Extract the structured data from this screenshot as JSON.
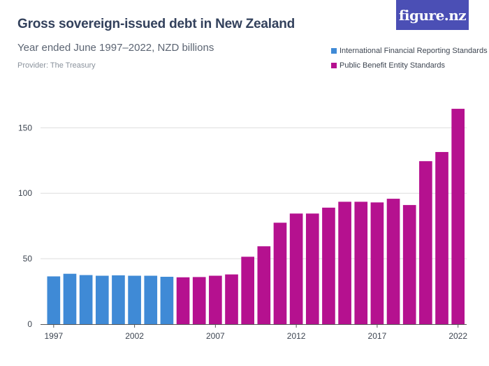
{
  "header": {
    "title": "Gross sovereign-issued debt in New Zealand",
    "subtitle": "Year ended June 1997–2022, NZD billions",
    "provider": "Provider: The Treasury",
    "logo_text": "figure.nz"
  },
  "colors": {
    "ifrs": "#3f8ad6",
    "pbe": "#b5118f",
    "grid": "#dedede",
    "axis_text": "#3d4551"
  },
  "chart_data": {
    "type": "bar",
    "title": "Gross sovereign-issued debt in New Zealand",
    "subtitle": "Year ended June 1997–2022, NZD billions",
    "xlabel": "",
    "ylabel": "",
    "ylim": [
      0,
      165
    ],
    "yticks": [
      0,
      50,
      100,
      150
    ],
    "xtick_labels": [
      "1997",
      "2002",
      "2007",
      "2012",
      "2017",
      "2022"
    ],
    "grid": true,
    "legend_position": "top-right",
    "categories": [
      "1997",
      "1998",
      "1999",
      "2000",
      "2001",
      "2002",
      "2003",
      "2004",
      "2005",
      "2006",
      "2007",
      "2008",
      "2009",
      "2010",
      "2011",
      "2012",
      "2013",
      "2014",
      "2015",
      "2016",
      "2017",
      "2018",
      "2019",
      "2020",
      "2021",
      "2022"
    ],
    "series": [
      {
        "name": "International Financial Reporting Standards",
        "color": "#3f8ad6",
        "values": [
          36.5,
          38.5,
          37.5,
          37.0,
          37.3,
          37.0,
          37.0,
          36.2,
          null,
          null,
          null,
          null,
          null,
          null,
          null,
          null,
          null,
          null,
          null,
          null,
          null,
          null,
          null,
          null,
          null,
          null
        ]
      },
      {
        "name": "Public Benefit Entity Standards",
        "color": "#b5118f",
        "values": [
          null,
          null,
          null,
          null,
          null,
          null,
          null,
          null,
          35.8,
          36.0,
          37.0,
          38.0,
          51.5,
          59.5,
          77.5,
          84.5,
          84.5,
          89.0,
          93.5,
          93.5,
          93.0,
          95.8,
          91.0,
          124.5,
          131.5,
          164.5
        ]
      }
    ]
  }
}
